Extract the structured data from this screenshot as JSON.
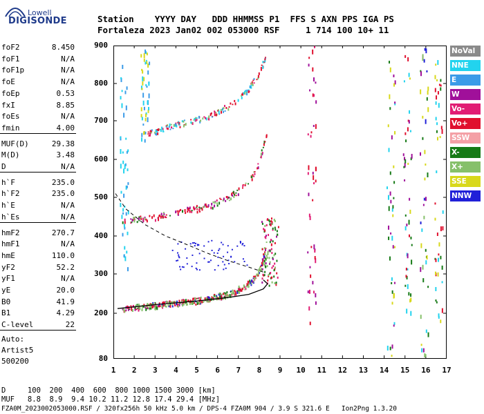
{
  "logo": {
    "line1": "Lowell",
    "line2": "DIGISONDE"
  },
  "header": {
    "row1": "Station    YYYY DAY   DDD HHMMSS P1  FFS S AXN PPS IGA PS",
    "row2": "Fortaleza 2023 Jan02 002 053000 RSF     1 714 100 10+ 11"
  },
  "params": [
    {
      "name": "foF2",
      "value": "8.450"
    },
    {
      "name": "foF1",
      "value": "N/A"
    },
    {
      "name": "foF1p",
      "value": "N/A"
    },
    {
      "name": "foE",
      "value": "N/A"
    },
    {
      "name": "foEp",
      "value": "0.53"
    },
    {
      "name": "fxI",
      "value": "8.85"
    },
    {
      "name": "foEs",
      "value": "N/A"
    },
    {
      "name": "fmin",
      "value": "4.00"
    },
    {
      "name": "MUF(D)",
      "value": "29.38"
    },
    {
      "name": "M(D)",
      "value": "3.48"
    },
    {
      "name": "D",
      "value": "N/A"
    },
    {
      "name": "h`F",
      "value": "235.0"
    },
    {
      "name": "h`F2",
      "value": "235.0"
    },
    {
      "name": "h`E",
      "value": "N/A"
    },
    {
      "name": "h`Es",
      "value": "N/A"
    },
    {
      "name": "hmF2",
      "value": "270.7"
    },
    {
      "name": "hmF1",
      "value": "N/A"
    },
    {
      "name": "hmE",
      "value": "110.0"
    },
    {
      "name": "yF2",
      "value": "52.2"
    },
    {
      "name": "yF1",
      "value": "N/A"
    },
    {
      "name": "yE",
      "value": "20.0"
    },
    {
      "name": "B0",
      "value": "41.9"
    },
    {
      "name": "B1",
      "value": "4.29"
    },
    {
      "name": "C-level",
      "value": "22"
    }
  ],
  "auto": {
    "l1": "Auto:",
    "l2": "Artist5",
    "l3": "500200"
  },
  "legend": [
    {
      "label": "NoVal",
      "color": "#8a8a8a"
    },
    {
      "label": "NNE",
      "color": "#22d3ee"
    },
    {
      "label": "E",
      "color": "#3b9be8"
    },
    {
      "label": "W",
      "color": "#a0109a"
    },
    {
      "label": "Vo-",
      "color": "#e11d74"
    },
    {
      "label": "Vo+",
      "color": "#e0102e"
    },
    {
      "label": "SSW",
      "color": "#f4a0a6"
    },
    {
      "label": "X-",
      "color": "#167a16"
    },
    {
      "label": "X+",
      "color": "#86c06a"
    },
    {
      "label": "SSE",
      "color": "#d8d81a"
    },
    {
      "label": "NNW",
      "color": "#2020d8"
    }
  ],
  "chart_data": {
    "type": "scatter",
    "title": "",
    "xlabel": "",
    "ylabel": "",
    "xlim": [
      1,
      17
    ],
    "ylim": [
      80,
      900
    ],
    "xticks": [
      "1",
      "2",
      "3",
      "4",
      "5",
      "6",
      "7",
      "8",
      "9",
      "10",
      "11",
      "12",
      "13",
      "14",
      "15",
      "16",
      "17"
    ],
    "yticks": [
      "80",
      "200",
      "300",
      "400",
      "500",
      "600",
      "700",
      "800",
      "900"
    ],
    "ytick_values": [
      80,
      200,
      300,
      400,
      500,
      600,
      700,
      800,
      900
    ],
    "traces": [
      {
        "name": "1st hop O-trace",
        "points": [
          [
            1.4,
            212
          ],
          [
            2.5,
            220
          ],
          [
            4,
            228
          ],
          [
            5.5,
            238
          ],
          [
            6.5,
            250
          ],
          [
            7.4,
            270
          ],
          [
            7.9,
            300
          ],
          [
            8.2,
            345
          ],
          [
            8.4,
            400
          ]
        ]
      },
      {
        "name": "1st hop X-trace",
        "points": [
          [
            1.8,
            215
          ],
          [
            3,
            222
          ],
          [
            5,
            232
          ],
          [
            6.5,
            250
          ],
          [
            7.6,
            280
          ],
          [
            8.2,
            330
          ],
          [
            8.6,
            380
          ]
        ]
      },
      {
        "name": "2nd hop",
        "points": [
          [
            1.4,
            445
          ],
          [
            2.5,
            445
          ],
          [
            4,
            462
          ],
          [
            5.5,
            478
          ],
          [
            6.5,
            500
          ],
          [
            7.4,
            535
          ],
          [
            7.9,
            580
          ],
          [
            8.2,
            640
          ],
          [
            8.4,
            690
          ]
        ]
      },
      {
        "name": "3rd hop",
        "points": [
          [
            2.6,
            668
          ],
          [
            4,
            690
          ],
          [
            5.5,
            712
          ],
          [
            6.5,
            740
          ],
          [
            7.4,
            780
          ],
          [
            8,
            830
          ],
          [
            8.4,
            890
          ]
        ]
      }
    ],
    "profile_solid": [
      [
        1.2,
        212
      ],
      [
        3,
        222
      ],
      [
        5,
        231
      ],
      [
        6.5,
        240
      ],
      [
        7.5,
        248
      ],
      [
        8.2,
        262
      ],
      [
        8.4,
        275
      ],
      [
        8.2,
        285
      ]
    ],
    "profile_dashed": [
      [
        1.1,
        510
      ],
      [
        1.6,
        470
      ],
      [
        2.5,
        430
      ],
      [
        3.5,
        400
      ],
      [
        4.5,
        378
      ],
      [
        5.5,
        355
      ],
      [
        6.5,
        335
      ],
      [
        7.5,
        318
      ],
      [
        8.2,
        305
      ]
    ]
  },
  "footer": {
    "line1": "D     100  200  400  600  800 1000 1500 3000 [km]",
    "line2": "MUF   8.8  8.9  9.4 10.2 11.2 12.8 17.4 29.4 [MHz]",
    "line3": "FZA0M_2023002053000.RSF / 320fx256h 50 kHz 5.0 km / DPS-4 FZA0M 904 / 3.9 S 321.6 E   Ion2Png 1.3.20"
  }
}
